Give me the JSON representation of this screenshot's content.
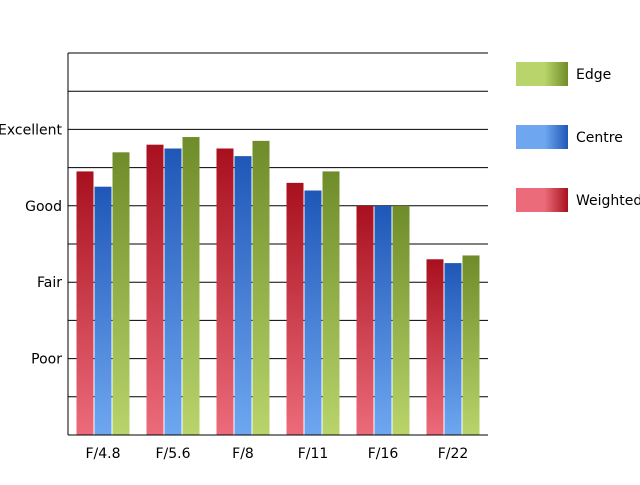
{
  "chart_data": {
    "type": "bar",
    "title": "",
    "xlabel": "",
    "ylabel": "",
    "categories": [
      "F/4.8",
      "F/5.6",
      "F/8",
      "F/11",
      "F/16",
      "F/22"
    ],
    "y_ticks": [
      {
        "value": 2,
        "label": "Poor"
      },
      {
        "value": 4,
        "label": "Fair"
      },
      {
        "value": 6,
        "label": "Good"
      },
      {
        "value": 8,
        "label": "Excellent"
      }
    ],
    "ylim": [
      0,
      10
    ],
    "grid": true,
    "legend_position": "right",
    "series": [
      {
        "name": "Weighted",
        "values": [
          6.9,
          7.6,
          7.5,
          6.6,
          6.0,
          4.6
        ],
        "colors": {
          "dark": "#a8101e",
          "light": "#ec6b7a"
        }
      },
      {
        "name": "Centre",
        "values": [
          6.5,
          7.5,
          7.3,
          6.4,
          6.0,
          4.5
        ],
        "colors": {
          "dark": "#1f57b8",
          "light": "#6ea7f0"
        }
      },
      {
        "name": "Edge",
        "values": [
          7.4,
          7.8,
          7.7,
          6.9,
          6.0,
          4.7
        ],
        "colors": {
          "dark": "#6f8c2a",
          "light": "#b8d46a"
        }
      }
    ],
    "legend_order": [
      "Edge",
      "Centre",
      "Weighted"
    ]
  }
}
